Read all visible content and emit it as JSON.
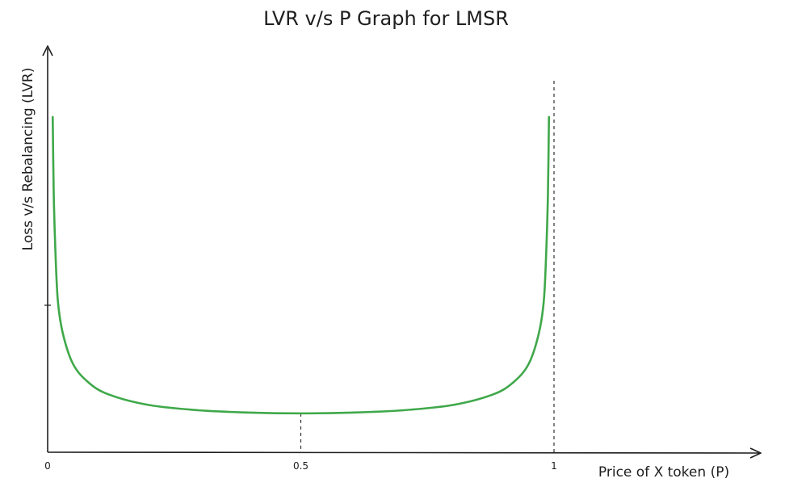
{
  "chart_data": {
    "type": "line",
    "title": "LVR v/s P Graph for LMSR",
    "xlabel": "Price of X token (P)",
    "ylabel": "Loss v/s Rebalancing (LVR)",
    "xlim": [
      0,
      1.4
    ],
    "xticks": [
      {
        "value": 0,
        "label": "0"
      },
      {
        "value": 0.5,
        "label": "0.5"
      },
      {
        "value": 1,
        "label": "1"
      }
    ],
    "series": [
      {
        "color": "#3fa84a",
        "x": [
          0.01,
          0.012,
          0.015,
          0.02,
          0.03,
          0.05,
          0.08,
          0.12,
          0.2,
          0.3,
          0.4,
          0.5,
          0.6,
          0.7,
          0.8,
          0.88,
          0.92,
          0.95,
          0.97,
          0.98,
          0.985,
          0.988,
          0.99
        ],
        "y": [
          2.2,
          1.7,
          1.35,
          1.0,
          0.78,
          0.58,
          0.46,
          0.38,
          0.31,
          0.275,
          0.26,
          0.255,
          0.26,
          0.275,
          0.31,
          0.38,
          0.46,
          0.58,
          0.78,
          1.0,
          1.35,
          1.7,
          2.2
        ]
      }
    ],
    "reference_lines": [
      {
        "orientation": "vertical",
        "x": 1,
        "style": "dashed"
      },
      {
        "orientation": "vertical",
        "x": 0.5,
        "to_curve": true,
        "style": "dashed"
      }
    ],
    "ytick_unlabeled": true,
    "grid": false,
    "legend": false
  }
}
